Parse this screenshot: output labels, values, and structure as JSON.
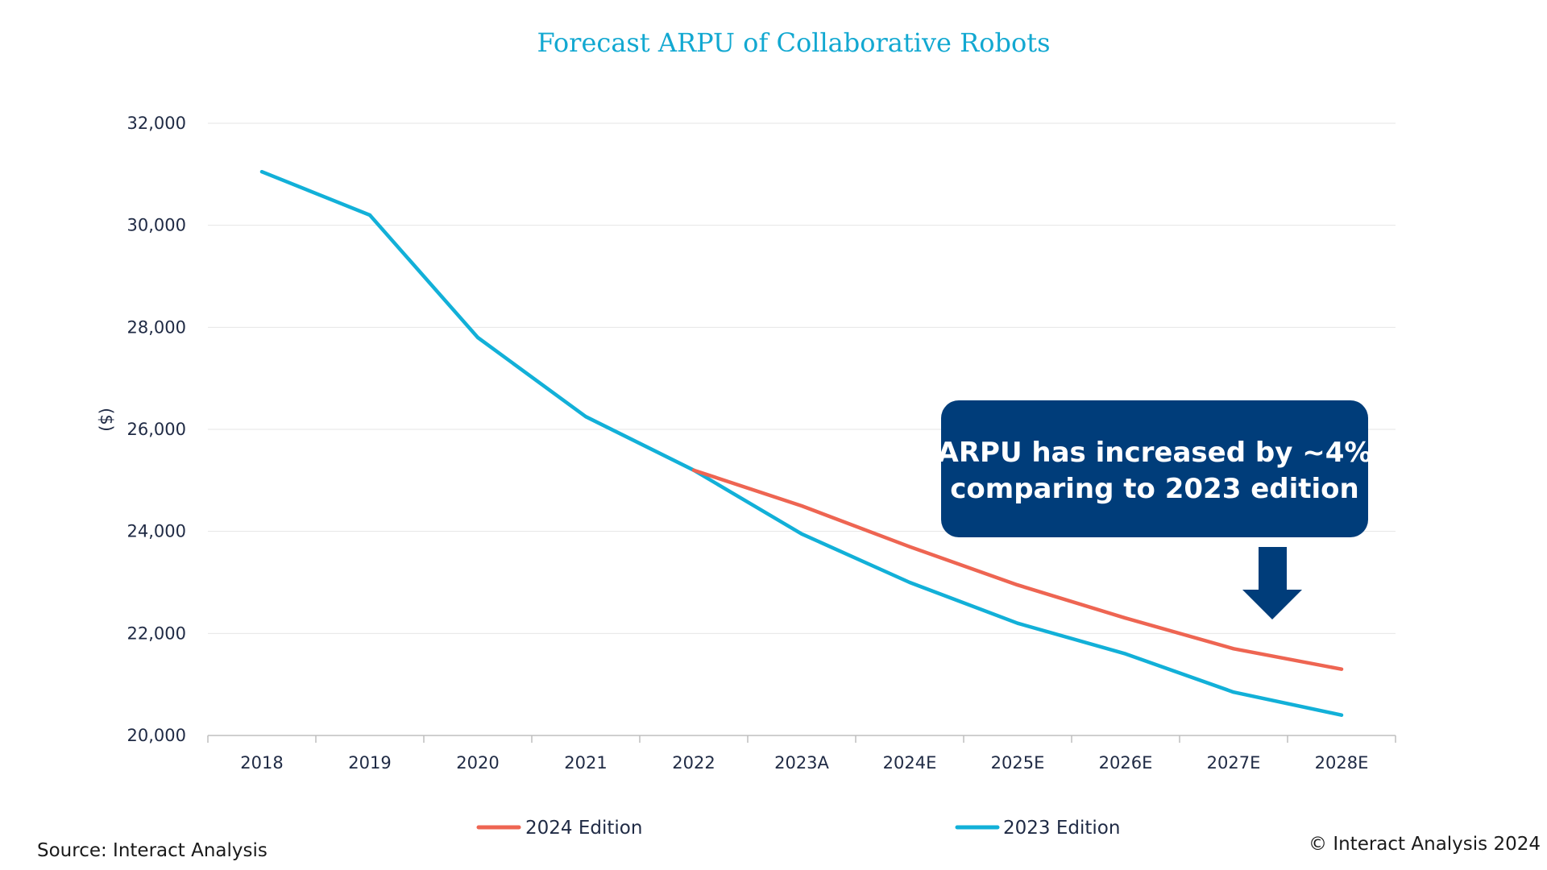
{
  "chart_data": {
    "type": "line",
    "title": "Forecast ARPU of Collaborative Robots",
    "xlabel": "",
    "ylabel": "($)",
    "categories": [
      "2018",
      "2019",
      "2020",
      "2021",
      "2022",
      "2023A",
      "2024E",
      "2025E",
      "2026E",
      "2027E",
      "2028E"
    ],
    "ylim": [
      20000,
      32000
    ],
    "yticks": [
      "20,000",
      "22,000",
      "24,000",
      "26,000",
      "28,000",
      "30,000",
      "32,000"
    ],
    "ytick_values": [
      20000,
      22000,
      24000,
      26000,
      28000,
      30000,
      32000
    ],
    "grid": true,
    "legend_position": "bottom",
    "series": [
      {
        "name": "2024 Edition",
        "color": "#ee6552",
        "values": [
          null,
          null,
          null,
          null,
          25200,
          24500,
          23700,
          22950,
          22300,
          21700,
          21300
        ]
      },
      {
        "name": "2023 Edition",
        "color": "#12b0d8",
        "values": [
          31050,
          30200,
          27800,
          26250,
          25200,
          23950,
          23000,
          22200,
          21600,
          20850,
          20400
        ]
      }
    ],
    "annotation": {
      "lines": [
        "ARPU has increased by ~4%",
        "comparing to 2023 edition"
      ],
      "box_color": "#003d7a",
      "arrow_color": "#003d7a",
      "arrow_direction": "down"
    }
  },
  "footer": {
    "source": "Source: Interact Analysis",
    "copyright": "© Interact Analysis 2024"
  }
}
